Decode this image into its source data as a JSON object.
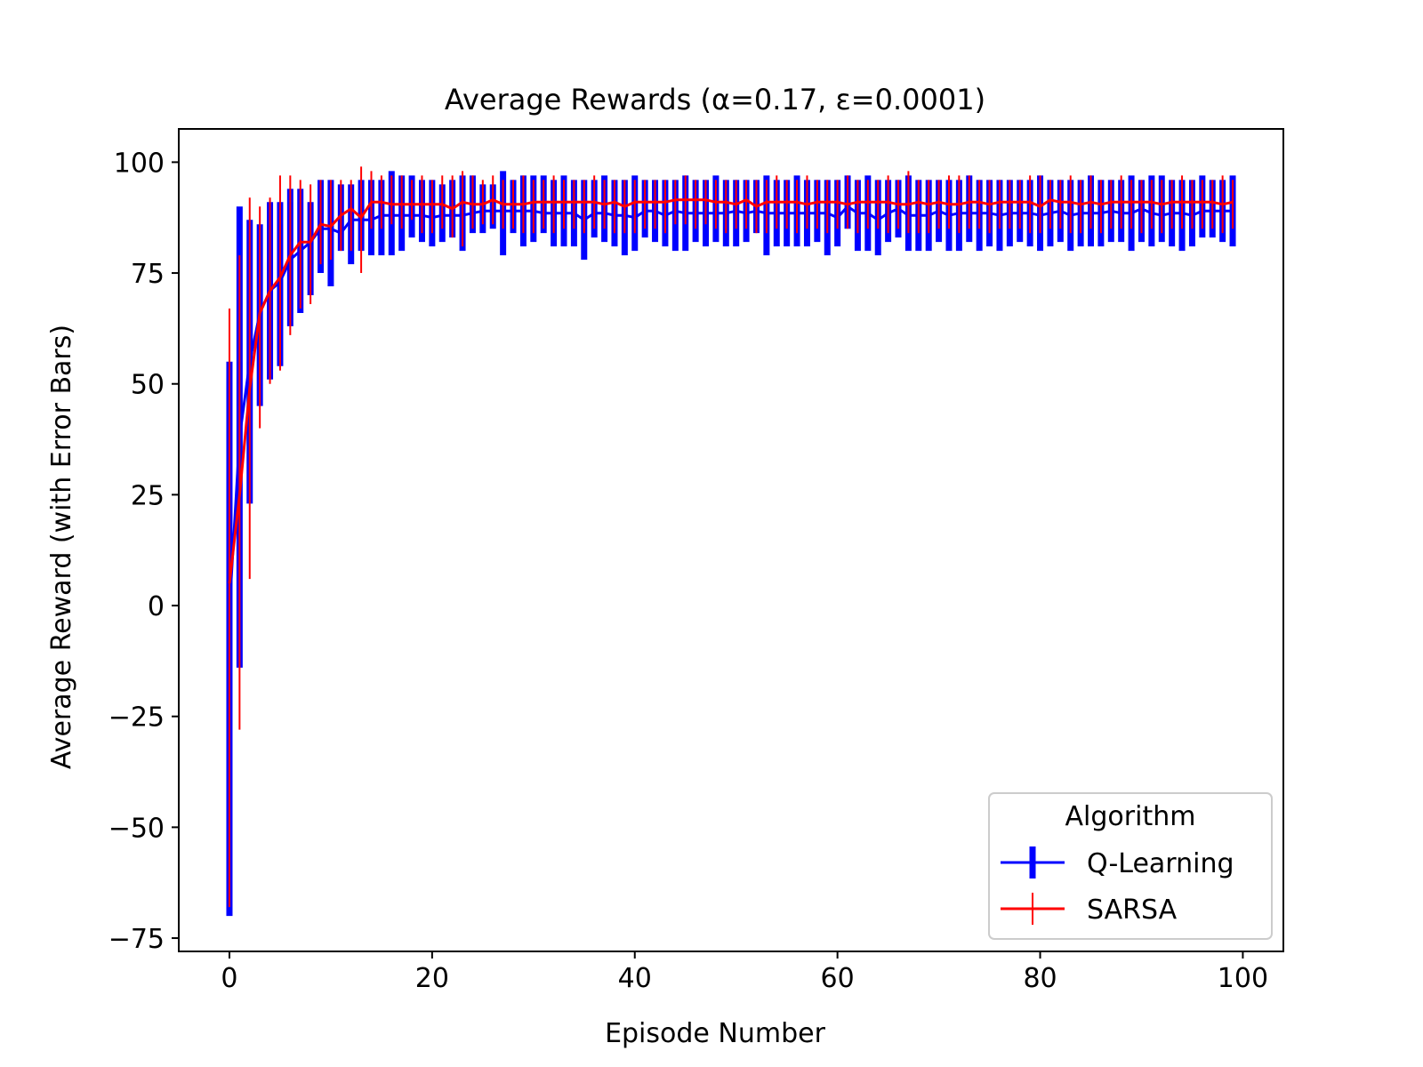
{
  "chart_data": {
    "type": "line",
    "title": "Average Rewards (α=0.17, ε=0.0001)",
    "xlabel": "Episode Number",
    "ylabel": "Average Reward (with Error Bars)",
    "xlim": [
      -5,
      104
    ],
    "ylim": [
      -78,
      107.5
    ],
    "x_ticks": [
      0,
      20,
      40,
      60,
      80,
      100
    ],
    "x_tick_labels": [
      "0",
      "20",
      "40",
      "60",
      "80",
      "100"
    ],
    "y_ticks": [
      -75,
      -50,
      -25,
      0,
      25,
      50,
      75,
      100
    ],
    "y_tick_labels": [
      "−75",
      "−50",
      "−25",
      "0",
      "25",
      "50",
      "75",
      "100"
    ],
    "grid": false,
    "legend": {
      "title": "Algorithm",
      "position": "lower-right"
    },
    "colors": {
      "q_learning": "#0000ff",
      "sarsa": "#ff0000"
    },
    "series": [
      {
        "name": "Q-Learning",
        "color": "#0000ff",
        "x": [
          0,
          1,
          2,
          3,
          4,
          5,
          6,
          7,
          8,
          9,
          10,
          11,
          12,
          13,
          14,
          15,
          16,
          17,
          18,
          19,
          20,
          21,
          22,
          23,
          24,
          25,
          26,
          27,
          28,
          29,
          30,
          31,
          32,
          33,
          34,
          35,
          36,
          37,
          38,
          39,
          40,
          41,
          42,
          43,
          44,
          45,
          46,
          47,
          48,
          49,
          50,
          51,
          52,
          53,
          54,
          55,
          56,
          57,
          58,
          59,
          60,
          61,
          62,
          63,
          64,
          65,
          66,
          67,
          68,
          69,
          70,
          71,
          72,
          73,
          74,
          75,
          76,
          77,
          78,
          79,
          80,
          81,
          82,
          83,
          84,
          85,
          86,
          87,
          88,
          89,
          90,
          91,
          92,
          93,
          94,
          95,
          96,
          97,
          98,
          99
        ],
        "y": [
          -1,
          38,
          55,
          66,
          71,
          73,
          78,
          80,
          82,
          85,
          85,
          84,
          87,
          87,
          87,
          88,
          88,
          88,
          88,
          88,
          87.5,
          88,
          88,
          88,
          88.5,
          89,
          89,
          89,
          89,
          89,
          89,
          88.5,
          88.5,
          88.5,
          88.5,
          87,
          88.5,
          88.5,
          88,
          88,
          87.5,
          89,
          89,
          88,
          89,
          88.5,
          88.5,
          88.5,
          88.5,
          88.5,
          89,
          88.5,
          89,
          88.5,
          88.5,
          88.5,
          88.5,
          88.5,
          88.5,
          88.5,
          87.5,
          90,
          88.5,
          88.5,
          87,
          88.5,
          89.5,
          88,
          88,
          88,
          89,
          88,
          88.5,
          88.5,
          88.5,
          88.5,
          88,
          88.5,
          88.5,
          88.5,
          88,
          88.5,
          89,
          88,
          88.5,
          88.5,
          88.5,
          89,
          88.5,
          88.5,
          89.5,
          88.5,
          88,
          88.5,
          88.5,
          88,
          89,
          89,
          89,
          89
        ],
        "err_low": [
          -70,
          -14,
          23,
          45,
          51,
          54,
          63,
          66,
          70,
          75,
          72,
          80,
          77,
          80,
          79,
          79,
          79,
          80,
          83,
          82,
          81,
          82,
          83,
          80,
          84,
          84,
          85,
          79,
          84,
          81,
          82,
          84,
          81,
          81,
          81,
          78,
          83,
          82,
          81,
          79,
          80,
          83,
          82,
          81,
          80,
          80,
          82,
          81,
          82,
          81,
          81,
          82,
          84,
          79,
          81,
          81,
          81,
          81,
          82,
          79,
          81,
          85,
          80,
          80,
          79,
          82,
          83,
          80,
          80,
          80,
          82,
          80,
          80,
          82,
          80,
          81,
          80,
          81,
          82,
          81,
          80,
          81,
          82,
          80,
          81,
          81,
          81,
          82,
          82,
          80,
          82,
          81,
          82,
          81,
          80,
          81,
          83,
          83,
          82,
          81
        ],
        "err_high": [
          55,
          90,
          87,
          86,
          91,
          91,
          94,
          94,
          91,
          96,
          96,
          95,
          95,
          96,
          96,
          96,
          98,
          97,
          97,
          96,
          96,
          95,
          96,
          97,
          97,
          95,
          95,
          98,
          96,
          97,
          97,
          97,
          96,
          97,
          96,
          96,
          96,
          97,
          96,
          96,
          97,
          96,
          96,
          96,
          96,
          97,
          96,
          96,
          97,
          96,
          96,
          96,
          96,
          97,
          96,
          96,
          97,
          96,
          96,
          96,
          96,
          97,
          96,
          97,
          96,
          96,
          96,
          97,
          96,
          96,
          96,
          96,
          96,
          97,
          96,
          96,
          96,
          96,
          96,
          96,
          97,
          96,
          96,
          96,
          96,
          97,
          96,
          96,
          96,
          97,
          96,
          97,
          97,
          96,
          96,
          96,
          97,
          96,
          96,
          97
        ]
      },
      {
        "name": "SARSA",
        "color": "#ff0000",
        "x": [
          0,
          1,
          2,
          3,
          4,
          5,
          6,
          7,
          8,
          9,
          10,
          11,
          12,
          13,
          14,
          15,
          16,
          17,
          18,
          19,
          20,
          21,
          22,
          23,
          24,
          25,
          26,
          27,
          28,
          29,
          30,
          31,
          32,
          33,
          34,
          35,
          36,
          37,
          38,
          39,
          40,
          41,
          42,
          43,
          44,
          45,
          46,
          47,
          48,
          49,
          50,
          51,
          52,
          53,
          54,
          55,
          56,
          57,
          58,
          59,
          60,
          61,
          62,
          63,
          64,
          65,
          66,
          67,
          68,
          69,
          70,
          71,
          72,
          73,
          74,
          75,
          76,
          77,
          78,
          79,
          80,
          81,
          82,
          83,
          84,
          85,
          86,
          87,
          88,
          89,
          90,
          91,
          92,
          93,
          94,
          95,
          96,
          97,
          98,
          99
        ],
        "y": [
          5,
          25,
          49,
          66,
          71,
          74,
          79,
          82,
          82,
          86,
          85.5,
          88,
          89.5,
          87.5,
          91,
          91,
          90.5,
          90.5,
          90.5,
          90.5,
          90.5,
          90.5,
          89.5,
          91,
          90.5,
          90.5,
          91.5,
          90.5,
          90.5,
          90.5,
          91,
          91,
          91,
          91,
          91,
          91,
          91,
          90.5,
          91,
          90,
          91,
          91,
          91,
          91,
          91.5,
          91.5,
          91.5,
          91.5,
          91,
          91,
          90.5,
          91.5,
          90,
          91,
          91,
          91,
          91,
          90.5,
          91,
          91,
          91,
          90.5,
          91,
          91,
          91,
          91,
          90.5,
          90.5,
          91,
          90.5,
          91,
          90.5,
          90.5,
          91,
          91,
          90.5,
          91,
          91,
          91,
          91,
          90,
          91.5,
          91,
          91,
          90.5,
          91,
          90.5,
          91,
          91,
          91,
          91,
          91,
          90.5,
          91,
          91,
          91,
          91,
          91,
          90.5,
          91
        ],
        "err_low": [
          -68,
          -28,
          6,
          40,
          50,
          53,
          61,
          67,
          68,
          77,
          78,
          80,
          80,
          75,
          85,
          85,
          86,
          85,
          87,
          84,
          84,
          85,
          83,
          81,
          85,
          86,
          86,
          85,
          85,
          84,
          84,
          85,
          84,
          85,
          85,
          84,
          85,
          85,
          84,
          84,
          84,
          85,
          85,
          84,
          86,
          86,
          85,
          86,
          85,
          84,
          85,
          85,
          84,
          84,
          85,
          85,
          84,
          85,
          85,
          84,
          85,
          85,
          84,
          85,
          85,
          84,
          85,
          84,
          84,
          84,
          85,
          85,
          84,
          85,
          85,
          84,
          85,
          85,
          85,
          84,
          84,
          85,
          85,
          84,
          84,
          85,
          84,
          85,
          85,
          85,
          84,
          85,
          84,
          85,
          85,
          85,
          85,
          85,
          84,
          85
        ],
        "err_high": [
          67,
          79,
          92,
          90,
          92,
          97,
          97,
          96,
          95,
          96,
          96,
          96,
          96,
          99,
          98,
          97,
          97,
          97,
          96,
          97,
          96,
          97,
          97,
          98,
          97,
          96,
          97,
          96,
          96,
          97,
          96,
          96,
          97,
          96,
          96,
          96,
          97,
          96,
          96,
          96,
          96,
          96,
          96,
          96,
          96,
          97,
          96,
          96,
          96,
          96,
          96,
          96,
          96,
          96,
          97,
          96,
          96,
          97,
          96,
          96,
          96,
          97,
          96,
          96,
          96,
          97,
          96,
          98,
          96,
          96,
          96,
          97,
          97,
          97,
          96,
          96,
          96,
          96,
          96,
          97,
          97,
          96,
          96,
          97,
          96,
          97,
          96,
          96,
          97,
          96,
          96,
          96,
          96,
          96,
          97,
          96,
          96,
          96,
          97,
          96
        ]
      }
    ]
  }
}
